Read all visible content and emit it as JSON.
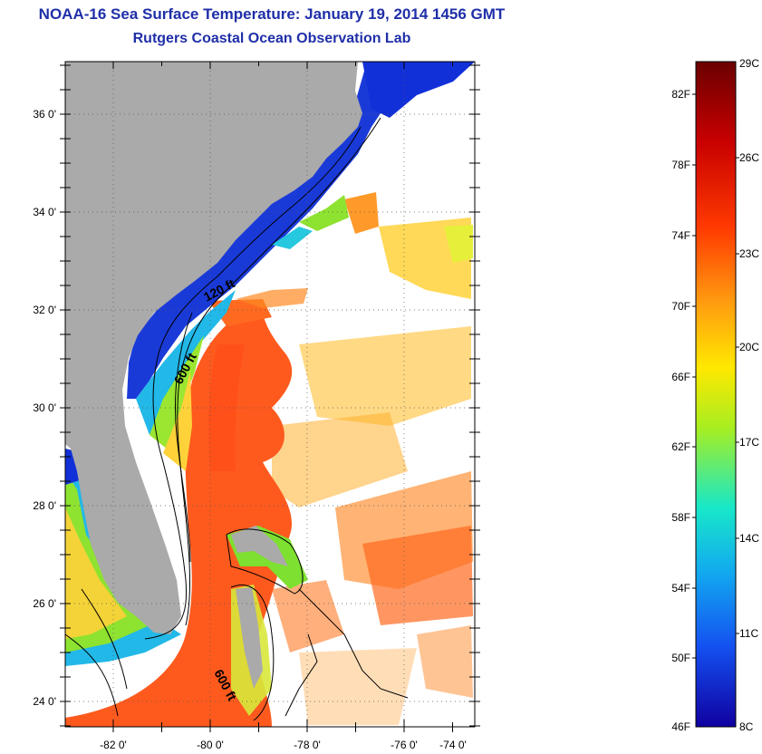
{
  "title": "NOAA-16 Sea Surface Temperature:  January 19, 2014 1456 GMT",
  "subtitle": "Rutgers Coastal Ocean Observation Lab",
  "map": {
    "lon_ticks": [
      "-82 0'",
      "-80 0'",
      "-78 0'",
      "-76 0'",
      "-74 0'"
    ],
    "lat_ticks": [
      "36 0'",
      "34 0'",
      "32 0'",
      "30 0'",
      "28 0'",
      "26 0'",
      "24 0'"
    ],
    "contours": [
      "120 ft",
      "600 ft",
      "600 ft"
    ],
    "colors": {
      "land": "#aaaaaa",
      "gulf_stream": "#ff5a1e",
      "shelf_cold": "#1230d8",
      "no_data": "#ffffff"
    }
  },
  "colorbar": {
    "fahrenheit": [
      "82F",
      "78F",
      "74F",
      "70F",
      "66F",
      "62F",
      "58F",
      "54F",
      "50F",
      "46F"
    ],
    "celsius": [
      "29C",
      "26C",
      "23C",
      "20C",
      "17C",
      "14C",
      "11C",
      "8C"
    ],
    "colors": [
      "#6a0000",
      "#c80000",
      "#ff3a00",
      "#ff9a10",
      "#ffe800",
      "#a8ee20",
      "#18e8c8",
      "#12a8f0",
      "#1450f0",
      "#1000a0"
    ]
  }
}
